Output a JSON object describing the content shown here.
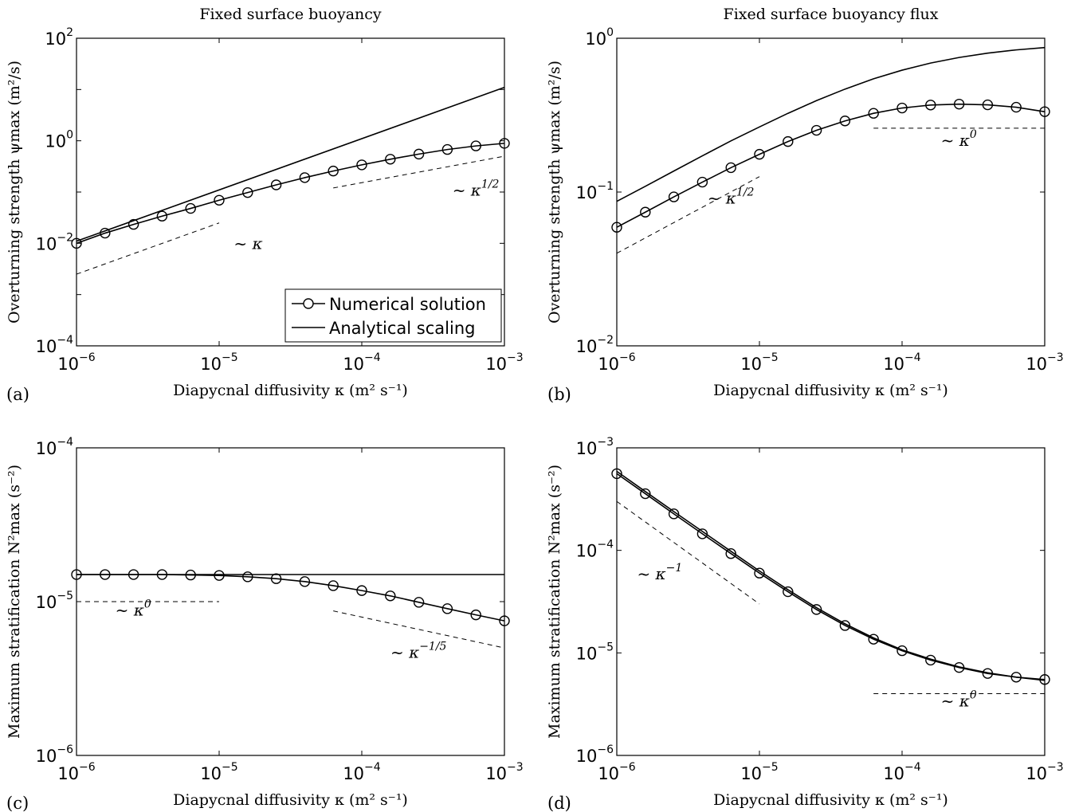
{
  "chart_data": [
    {
      "panel_label": "(a)",
      "type": "line",
      "title": "Fixed surface buoyancy",
      "xlabel": "Diapycnal diffusivity κ (m² s⁻¹)",
      "ylabel": "Overturning strength ψmax (m²/s)",
      "x_scale": "log",
      "y_scale": "log",
      "xlim": [
        1e-06,
        0.001
      ],
      "ylim": [
        0.0001,
        100
      ],
      "x_ticks": [
        1e-06,
        1e-05,
        0.0001,
        0.001
      ],
      "x_tick_labels": [
        [
          "10",
          "−6"
        ],
        [
          "10",
          "−5"
        ],
        [
          "10",
          "−4"
        ],
        [
          "10",
          "−3"
        ]
      ],
      "y_ticks": [
        0.0001,
        0.01,
        1,
        100
      ],
      "y_tick_labels": [
        [
          "10",
          "−4"
        ],
        [
          "10",
          "−2"
        ],
        [
          "10",
          "0"
        ],
        [
          "10",
          "2"
        ]
      ],
      "legend": {
        "position": "lower-right",
        "entries": [
          "Numerical solution",
          "Analytical scaling"
        ]
      },
      "series": [
        {
          "name": "Numerical solution",
          "style": "circle-line",
          "x": [
            1e-06,
            1.585e-06,
            2.512e-06,
            3.981e-06,
            6.31e-06,
            1e-05,
            1.585e-05,
            2.512e-05,
            3.981e-05,
            6.31e-05,
            0.0001,
            0.0001585,
            0.0002512,
            0.0003981,
            0.000631,
            0.001
          ],
          "y": [
            0.01,
            0.0158,
            0.0234,
            0.0339,
            0.0479,
            0.0692,
            0.0977,
            0.138,
            0.191,
            0.257,
            0.339,
            0.437,
            0.55,
            0.676,
            0.794,
            0.891
          ]
        },
        {
          "name": "Analytical scaling",
          "style": "line",
          "x": [
            1e-06,
            0.001
          ],
          "y": [
            0.011,
            11
          ]
        }
      ],
      "reference_lines": [
        {
          "x": [
            1e-06,
            1e-05
          ],
          "y": [
            0.0025,
            0.025
          ]
        },
        {
          "x": [
            6.31e-05,
            0.001
          ],
          "y": [
            0.12,
            0.5
          ]
        }
      ],
      "annotations": [
        {
          "base": "~ κ",
          "sup": "",
          "x": 1.6e-05,
          "y": 0.0078
        },
        {
          "base": "~ κ",
          "sup": "1/2",
          "x": 0.00063,
          "y": 0.085
        }
      ]
    },
    {
      "panel_label": "(b)",
      "type": "line",
      "title": "Fixed surface buoyancy flux",
      "xlabel": "Diapycnal diffusivity κ (m² s⁻¹)",
      "ylabel": "Overturning strength ψmax (m²/s)",
      "x_scale": "log",
      "y_scale": "log",
      "xlim": [
        1e-06,
        0.001
      ],
      "ylim": [
        0.01,
        1
      ],
      "x_ticks": [
        1e-06,
        1e-05,
        0.0001,
        0.001
      ],
      "x_tick_labels": [
        [
          "10",
          "−6"
        ],
        [
          "10",
          "−5"
        ],
        [
          "10",
          "−4"
        ],
        [
          "10",
          "−3"
        ]
      ],
      "y_ticks": [
        0.01,
        0.1,
        1
      ],
      "y_tick_labels": [
        [
          "10",
          "−2"
        ],
        [
          "10",
          "−1"
        ],
        [
          "10",
          "0"
        ]
      ],
      "series": [
        {
          "name": "Numerical solution",
          "style": "circle-line",
          "x": [
            1e-06,
            1.585e-06,
            2.512e-06,
            3.981e-06,
            6.31e-06,
            1e-05,
            1.585e-05,
            2.512e-05,
            3.981e-05,
            6.31e-05,
            0.0001,
            0.0001585,
            0.0002512,
            0.0003981,
            0.000631,
            0.001
          ],
          "y": [
            0.059,
            0.074,
            0.093,
            0.116,
            0.144,
            0.176,
            0.213,
            0.252,
            0.29,
            0.325,
            0.352,
            0.368,
            0.373,
            0.369,
            0.356,
            0.333
          ]
        },
        {
          "name": "Analytical scaling",
          "style": "line",
          "x": [
            1e-06,
            1.585e-06,
            2.512e-06,
            3.981e-06,
            6.31e-06,
            1e-05,
            1.585e-05,
            2.512e-05,
            3.981e-05,
            6.31e-05,
            0.0001,
            0.0001585,
            0.0002512,
            0.0003981,
            0.000631,
            0.001
          ],
          "y": [
            0.087,
            0.109,
            0.137,
            0.172,
            0.215,
            0.265,
            0.325,
            0.393,
            0.467,
            0.545,
            0.62,
            0.69,
            0.75,
            0.8,
            0.84,
            0.87
          ]
        }
      ],
      "reference_lines": [
        {
          "x": [
            1e-06,
            1e-05
          ],
          "y": [
            0.04,
            0.126
          ]
        },
        {
          "x": [
            6.31e-05,
            0.001
          ],
          "y": [
            0.26,
            0.26
          ]
        }
      ],
      "annotations": [
        {
          "base": "~ κ",
          "sup": "1/2",
          "x": 6.3e-06,
          "y": 0.084
        },
        {
          "base": "~ κ",
          "sup": "0",
          "x": 0.00025,
          "y": 0.2
        }
      ]
    },
    {
      "panel_label": "(c)",
      "type": "line",
      "title": "",
      "xlabel": "Diapycnal diffusivity κ (m² s⁻¹)",
      "ylabel": "Maximum stratification N²max (s⁻²)",
      "x_scale": "log",
      "y_scale": "log",
      "xlim": [
        1e-06,
        0.001
      ],
      "ylim": [
        1e-06,
        0.0001
      ],
      "x_ticks": [
        1e-06,
        1e-05,
        0.0001,
        0.001
      ],
      "x_tick_labels": [
        [
          "10",
          "−6"
        ],
        [
          "10",
          "−5"
        ],
        [
          "10",
          "−4"
        ],
        [
          "10",
          "−3"
        ]
      ],
      "y_ticks": [
        1e-06,
        1e-05,
        0.0001
      ],
      "y_tick_labels": [
        [
          "10",
          "−6"
        ],
        [
          "10",
          "−5"
        ],
        [
          "10",
          "−4"
        ]
      ],
      "series": [
        {
          "name": "Numerical solution",
          "style": "circle-line",
          "x": [
            1e-06,
            1.585e-06,
            2.512e-06,
            3.981e-06,
            6.31e-06,
            1e-05,
            1.585e-05,
            2.512e-05,
            3.981e-05,
            6.31e-05,
            0.0001,
            0.0001585,
            0.0002512,
            0.0003981,
            0.000631,
            0.001
          ],
          "y": [
            1.5e-05,
            1.5e-05,
            1.5e-05,
            1.5e-05,
            1.49e-05,
            1.48e-05,
            1.45e-05,
            1.41e-05,
            1.35e-05,
            1.27e-05,
            1.18e-05,
            1.09e-05,
            9.9e-06,
            9e-06,
            8.2e-06,
            7.5e-06
          ]
        },
        {
          "name": "Analytical scaling",
          "style": "line",
          "x": [
            1e-06,
            0.001
          ],
          "y": [
            1.5e-05,
            1.5e-05
          ]
        }
      ],
      "reference_lines": [
        {
          "x": [
            1e-06,
            1e-05
          ],
          "y": [
            1e-05,
            1e-05
          ]
        },
        {
          "x": [
            6.31e-05,
            0.001
          ],
          "y": [
            8.7e-06,
            5e-06
          ]
        }
      ],
      "annotations": [
        {
          "base": "~ κ",
          "sup": "0",
          "x": 2.5e-06,
          "y": 8.1e-06
        },
        {
          "base": "~ κ",
          "sup": "−1/5",
          "x": 0.00025,
          "y": 4.3e-06
        }
      ]
    },
    {
      "panel_label": "(d)",
      "type": "line",
      "title": "",
      "xlabel": "Diapycnal diffusivity κ (m² s⁻¹)",
      "ylabel": "Maximum stratification N²max (s⁻²)",
      "x_scale": "log",
      "y_scale": "log",
      "xlim": [
        1e-06,
        0.001
      ],
      "ylim": [
        1e-06,
        0.001
      ],
      "x_ticks": [
        1e-06,
        1e-05,
        0.0001,
        0.001
      ],
      "x_tick_labels": [
        [
          "10",
          "−6"
        ],
        [
          "10",
          "−5"
        ],
        [
          "10",
          "−4"
        ],
        [
          "10",
          "−3"
        ]
      ],
      "y_ticks": [
        1e-06,
        1e-05,
        0.0001,
        0.001
      ],
      "y_tick_labels": [
        [
          "10",
          "−6"
        ],
        [
          "10",
          "−5"
        ],
        [
          "10",
          "−4"
        ],
        [
          "10",
          "−3"
        ]
      ],
      "series": [
        {
          "name": "Numerical solution",
          "style": "circle-line",
          "x": [
            1e-06,
            1.585e-06,
            2.512e-06,
            3.981e-06,
            6.31e-06,
            1e-05,
            1.585e-05,
            2.512e-05,
            3.981e-05,
            6.31e-05,
            0.0001,
            0.0001585,
            0.0002512,
            0.0003981,
            0.000631,
            0.001
          ],
          "y": [
            0.00056,
            0.000357,
            0.000227,
            0.000145,
            9.3e-05,
            6e-05,
            3.95e-05,
            2.65e-05,
            1.85e-05,
            1.36e-05,
            1.05e-05,
            8.5e-06,
            7.2e-06,
            6.3e-06,
            5.8e-06,
            5.5e-06
          ]
        },
        {
          "name": "Analytical scaling",
          "style": "line",
          "x": [
            1e-06,
            1.585e-06,
            2.512e-06,
            3.981e-06,
            6.31e-06,
            1e-05,
            1.585e-05,
            2.512e-05,
            3.981e-05,
            6.31e-05,
            0.0001,
            0.0001585,
            0.0002512,
            0.0003981,
            0.000631,
            0.001
          ],
          "y": [
            0.00059,
            0.000375,
            0.000239,
            0.000153,
            9.8e-05,
            6.3e-05,
            4.13e-05,
            2.76e-05,
            1.92e-05,
            1.4e-05,
            1.07e-05,
            8.7e-06,
            7.3e-06,
            6.4e-06,
            5.8e-06,
            5.4e-06
          ]
        }
      ],
      "reference_lines": [
        {
          "x": [
            1e-06,
            1e-05
          ],
          "y": [
            0.0003,
            3e-05
          ]
        },
        {
          "x": [
            6.31e-05,
            0.001
          ],
          "y": [
            4e-06,
            4e-06
          ]
        }
      ],
      "annotations": [
        {
          "base": "~ κ",
          "sup": "−1",
          "x": 2e-06,
          "y": 5.2e-05
        },
        {
          "base": "~ κ",
          "sup": "0",
          "x": 0.00025,
          "y": 3e-06
        }
      ]
    }
  ]
}
